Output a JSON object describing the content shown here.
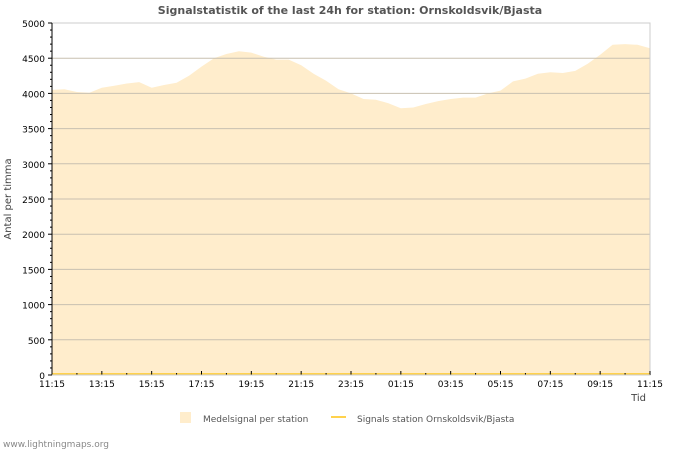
{
  "chart_data": {
    "type": "area",
    "title": "Signalstatistik of the last 24h for station: Ornskoldsvik/Bjasta",
    "xlabel": "Tid",
    "ylabel": "Antal per timma",
    "ylim": [
      0,
      5000
    ],
    "yticks": [
      0,
      500,
      1000,
      1500,
      2000,
      2500,
      3000,
      3500,
      4000,
      4500,
      5000
    ],
    "xtick_labels": [
      "11:15",
      "13:15",
      "15:15",
      "17:15",
      "19:15",
      "21:15",
      "23:15",
      "01:15",
      "03:15",
      "05:15",
      "07:15",
      "09:15",
      "11:15"
    ],
    "grid": true,
    "legend_position": "bottom",
    "series": [
      {
        "name": "Medelsignal per station",
        "color": "#ffedcc",
        "step_hours": 0.5,
        "values": [
          4050,
          4060,
          4020,
          4010,
          4080,
          4110,
          4140,
          4160,
          4080,
          4120,
          4150,
          4250,
          4380,
          4500,
          4560,
          4600,
          4580,
          4520,
          4480,
          4480,
          4400,
          4280,
          4180,
          4060,
          4000,
          3920,
          3910,
          3860,
          3790,
          3800,
          3850,
          3890,
          3920,
          3940,
          3940,
          4000,
          4040,
          4170,
          4210,
          4280,
          4300,
          4290,
          4320,
          4420,
          4550,
          4690,
          4700,
          4690,
          4640
        ]
      },
      {
        "name": "Signals station Ornskoldsvik/Bjasta",
        "color": "#ffd24d",
        "step_hours": 0.5,
        "values": [
          0,
          0,
          0,
          0,
          0,
          0,
          0,
          0,
          0,
          0,
          0,
          0,
          0,
          0,
          0,
          0,
          0,
          0,
          0,
          0,
          0,
          0,
          0,
          0,
          0,
          0,
          0,
          0,
          0,
          0,
          0,
          0,
          0,
          0,
          0,
          0,
          0,
          0,
          0,
          0,
          0,
          0,
          0,
          0,
          0,
          0,
          0,
          0,
          0
        ]
      }
    ]
  },
  "watermark": "www.lightningmaps.org"
}
